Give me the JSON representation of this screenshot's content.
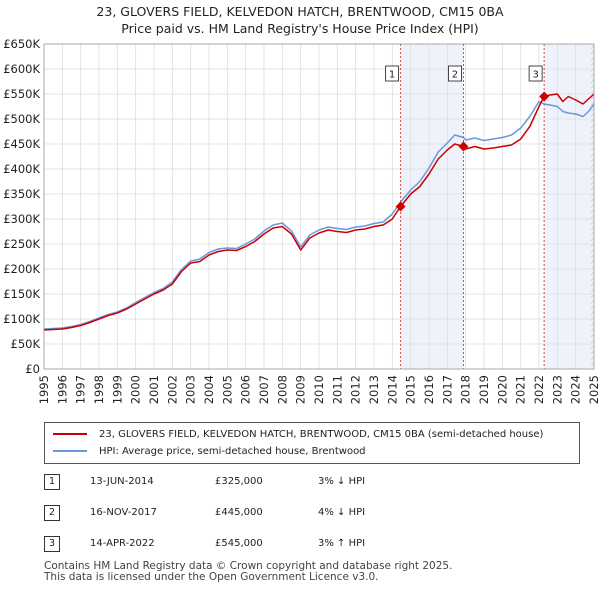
{
  "title_line1": "23, GLOVERS FIELD, KELVEDON HATCH, BRENTWOOD, CM15 0BA",
  "title_line2": "Price paid vs. HM Land Registry's House Price Index (HPI)",
  "colors": {
    "price": "#cc0000",
    "hpi": "#6699dd",
    "shade": "#eef2fb",
    "vline": "#dd4444",
    "grid": "#dddddd"
  },
  "chart_data": {
    "type": "line",
    "title": "Price paid vs. HM Land Registry's House Price Index (HPI)",
    "xlim": [
      1995,
      2025
    ],
    "ylim": [
      0,
      650000
    ],
    "y_ticks": [
      {
        "value": 0,
        "label": "£0"
      },
      {
        "value": 50000,
        "label": "£50K"
      },
      {
        "value": 100000,
        "label": "£100K"
      },
      {
        "value": 150000,
        "label": "£150K"
      },
      {
        "value": 200000,
        "label": "£200K"
      },
      {
        "value": 250000,
        "label": "£250K"
      },
      {
        "value": 300000,
        "label": "£300K"
      },
      {
        "value": 350000,
        "label": "£350K"
      },
      {
        "value": 400000,
        "label": "£400K"
      },
      {
        "value": 450000,
        "label": "£450K"
      },
      {
        "value": 500000,
        "label": "£500K"
      },
      {
        "value": 550000,
        "label": "£550K"
      },
      {
        "value": 600000,
        "label": "£600K"
      },
      {
        "value": 650000,
        "label": "£650K"
      }
    ],
    "x_ticks": [
      "1995",
      "1996",
      "1997",
      "1998",
      "1999",
      "2000",
      "2001",
      "2002",
      "2003",
      "2004",
      "2005",
      "2006",
      "2007",
      "2008",
      "2009",
      "2010",
      "2011",
      "2012",
      "2013",
      "2014",
      "2015",
      "2016",
      "2017",
      "2018",
      "2019",
      "2020",
      "2021",
      "2022",
      "2023",
      "2024",
      "2025"
    ],
    "series": [
      {
        "name": "23, GLOVERS FIELD, KELVEDON HATCH, BRENTWOOD, CM15 0BA (semi-detached house)",
        "color": "#cc0000",
        "x": [
          1995,
          1995.5,
          1996,
          1996.5,
          1997,
          1997.5,
          1998,
          1998.5,
          1999,
          1999.5,
          2000,
          2000.5,
          2001,
          2001.5,
          2002,
          2002.5,
          2003,
          2003.5,
          2004,
          2004.5,
          2005,
          2005.5,
          2006,
          2006.5,
          2007,
          2007.5,
          2008,
          2008.5,
          2009,
          2009.5,
          2010,
          2010.5,
          2011,
          2011.5,
          2012,
          2012.5,
          2013,
          2013.5,
          2014,
          2014.45,
          2015,
          2015.5,
          2016,
          2016.5,
          2017,
          2017.4,
          2017.88,
          2018,
          2018.5,
          2019,
          2019.5,
          2020,
          2020.5,
          2021,
          2021.5,
          2022,
          2022.28,
          2022.6,
          2023,
          2023.3,
          2023.6,
          2024,
          2024.4,
          2024.7,
          2025
        ],
        "values": [
          78000,
          79000,
          80000,
          83000,
          87000,
          93000,
          100000,
          107000,
          112000,
          120000,
          130000,
          140000,
          150000,
          158000,
          170000,
          195000,
          212000,
          215000,
          228000,
          235000,
          238000,
          237000,
          245000,
          255000,
          270000,
          282000,
          285000,
          270000,
          238000,
          262000,
          272000,
          278000,
          275000,
          273000,
          278000,
          280000,
          285000,
          288000,
          300000,
          325000,
          350000,
          365000,
          390000,
          420000,
          438000,
          450000,
          445000,
          440000,
          445000,
          440000,
          442000,
          445000,
          448000,
          460000,
          485000,
          525000,
          545000,
          548000,
          550000,
          535000,
          545000,
          538000,
          530000,
          540000,
          550000
        ]
      },
      {
        "name": "HPI: Average price, semi-detached house, Brentwood",
        "color": "#6699dd",
        "x": [
          1995,
          1995.5,
          1996,
          1996.5,
          1997,
          1997.5,
          1998,
          1998.5,
          1999,
          1999.5,
          2000,
          2000.5,
          2001,
          2001.5,
          2002,
          2002.5,
          2003,
          2003.5,
          2004,
          2004.5,
          2005,
          2005.5,
          2006,
          2006.5,
          2007,
          2007.5,
          2008,
          2008.5,
          2009,
          2009.5,
          2010,
          2010.5,
          2011,
          2011.5,
          2012,
          2012.5,
          2013,
          2013.5,
          2014,
          2014.45,
          2015,
          2015.5,
          2016,
          2016.5,
          2017,
          2017.4,
          2017.88,
          2018,
          2018.5,
          2019,
          2019.5,
          2020,
          2020.5,
          2021,
          2021.5,
          2022,
          2022.28,
          2022.6,
          2023,
          2023.3,
          2023.6,
          2024,
          2024.4,
          2024.7,
          2025
        ],
        "values": [
          80000,
          81000,
          82000,
          85000,
          89000,
          95000,
          102000,
          109000,
          114000,
          122000,
          133000,
          143000,
          153000,
          161000,
          174000,
          199000,
          216000,
          220000,
          233000,
          240000,
          242000,
          241000,
          250000,
          260000,
          276000,
          288000,
          292000,
          276000,
          244000,
          268000,
          278000,
          284000,
          281000,
          279000,
          284000,
          286000,
          291000,
          294000,
          310000,
          334000,
          358000,
          375000,
          402000,
          434000,
          452000,
          468000,
          463000,
          458000,
          462000,
          457000,
          460000,
          463000,
          468000,
          482000,
          505000,
          535000,
          530000,
          528000,
          525000,
          515000,
          512000,
          510000,
          505000,
          515000,
          530000
        ]
      }
    ],
    "shaded_regions": [
      [
        2014.45,
        2017.88
      ],
      [
        2022.28,
        2025
      ]
    ],
    "sales": [
      {
        "label": "1",
        "x": 2014.45,
        "value": 325000,
        "date": "13-JUN-2014",
        "price": "£325,000",
        "hpi": "3% ↓ HPI"
      },
      {
        "label": "2",
        "x": 2017.88,
        "value": 445000,
        "date": "16-NOV-2017",
        "price": "£445,000",
        "hpi": "4% ↓ HPI"
      },
      {
        "label": "3",
        "x": 2022.28,
        "value": 545000,
        "date": "14-APR-2022",
        "price": "£545,000",
        "hpi": "3% ↑ HPI"
      }
    ],
    "hatched_from": 2024.83
  },
  "legend": {
    "price_label": "23, GLOVERS FIELD, KELVEDON HATCH, BRENTWOOD, CM15 0BA (semi-detached house)",
    "hpi_label": "HPI: Average price, semi-detached house, Brentwood"
  },
  "footer": {
    "line1": "Contains HM Land Registry data © Crown copyright and database right 2025.",
    "line2": "This data is licensed under the Open Government Licence v3.0."
  }
}
